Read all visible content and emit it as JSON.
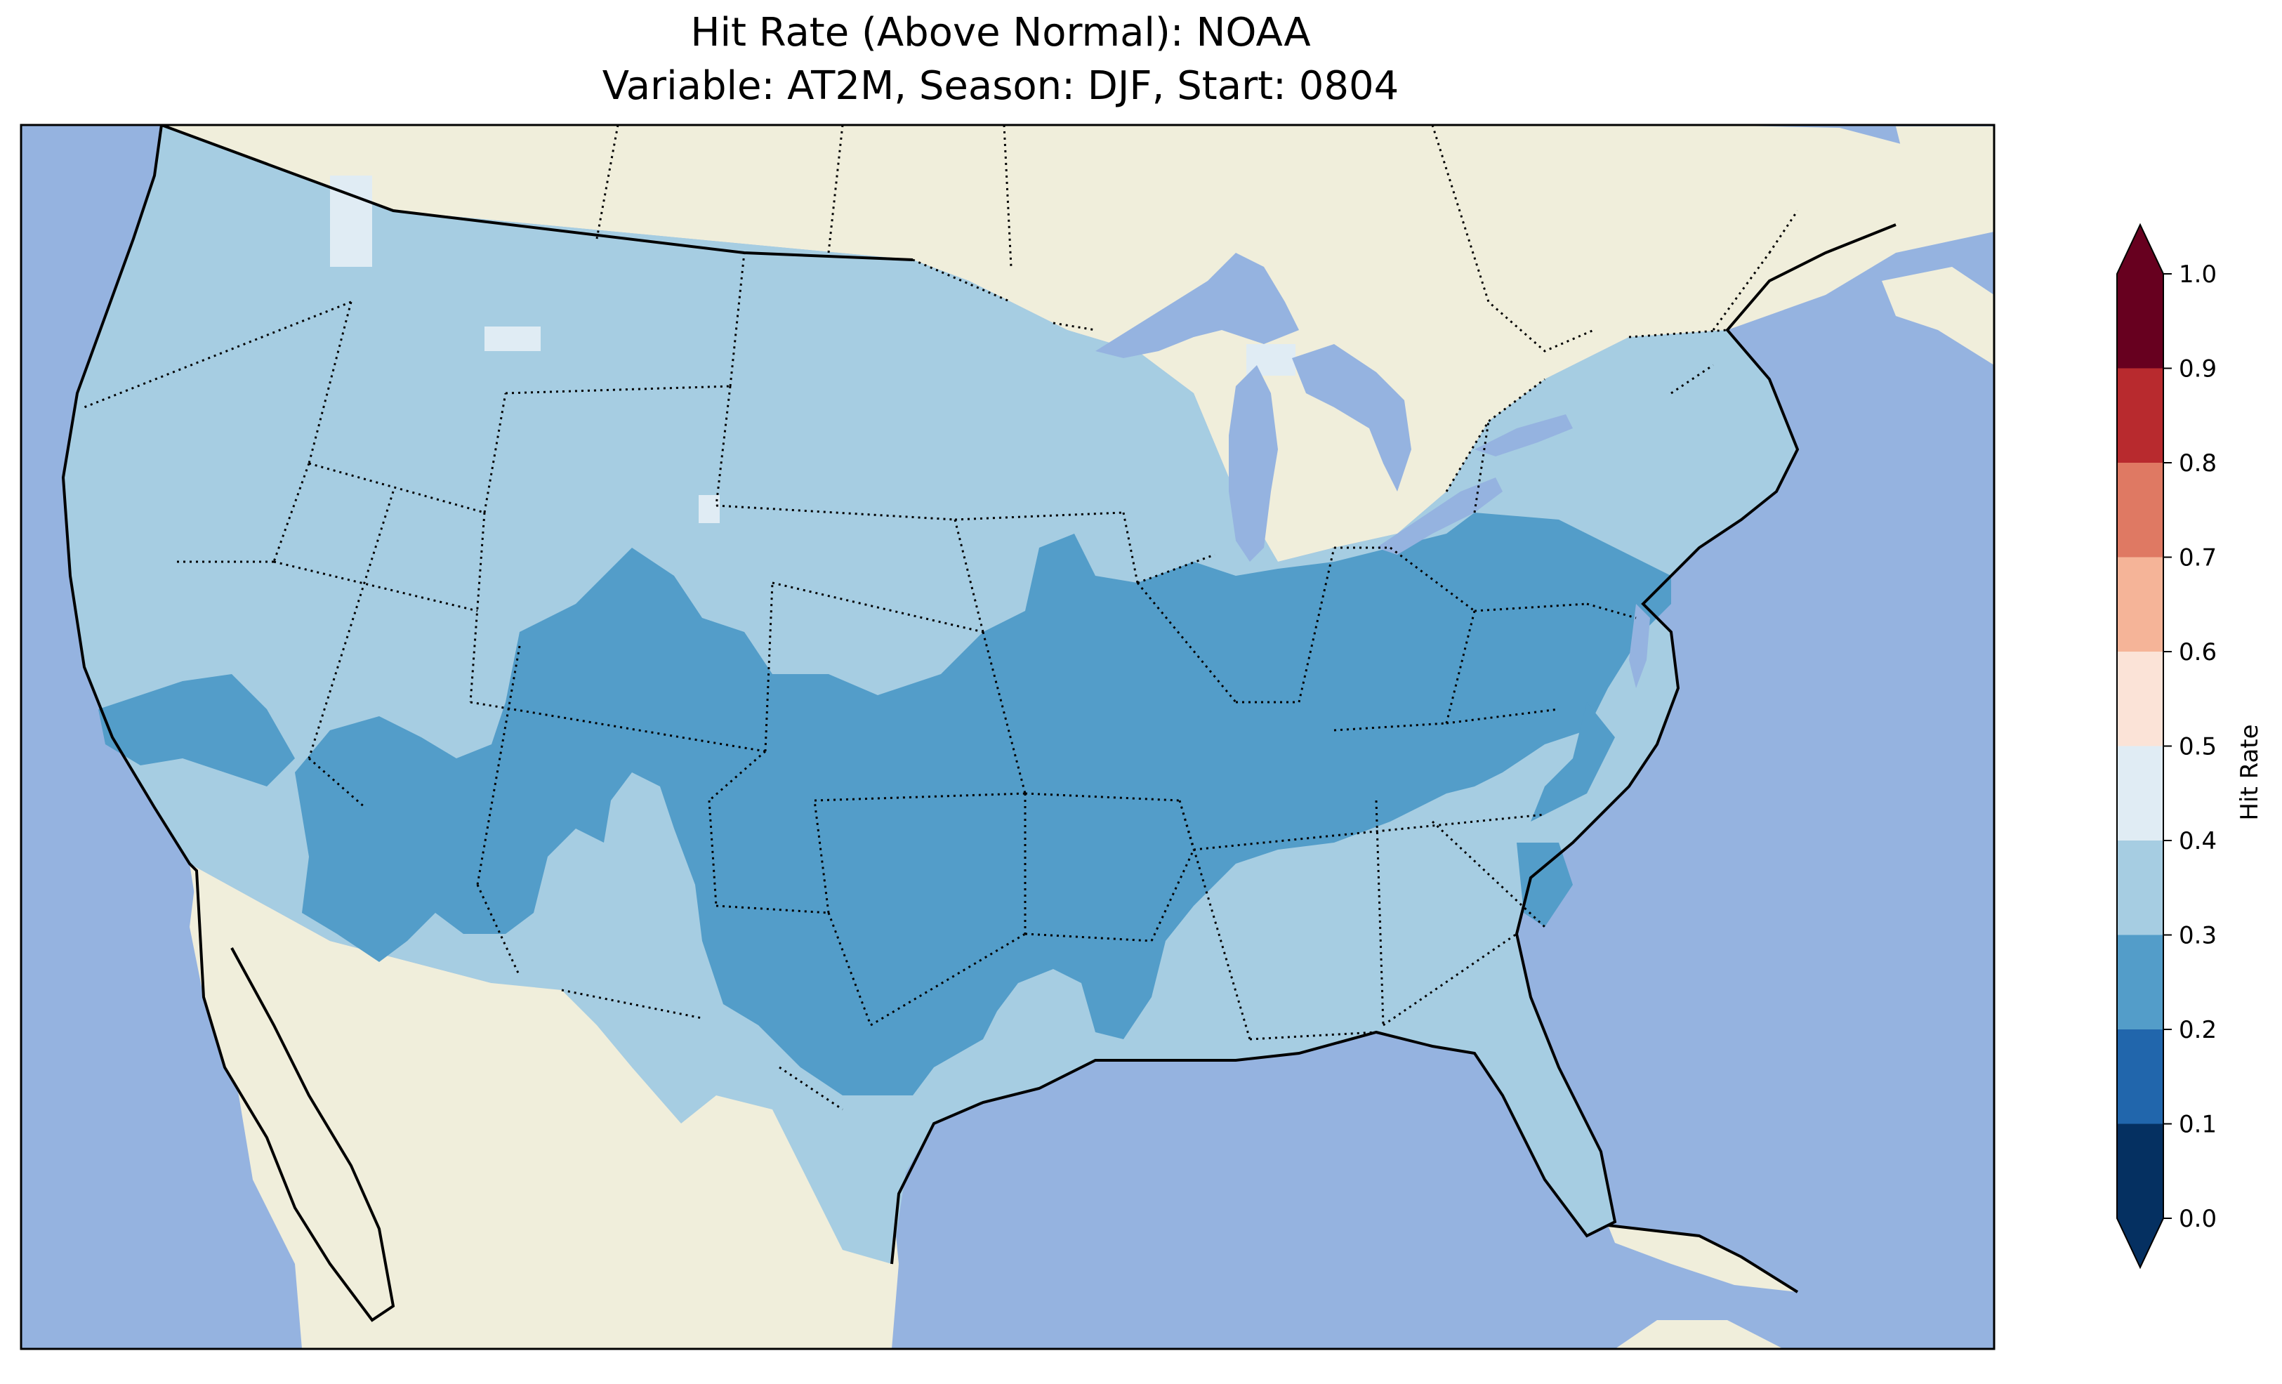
{
  "figure": {
    "title_line1": "Hit Rate (Above Normal): NOAA",
    "title_line2": "Variable: AT2M, Season: DJF, Start: 0804"
  },
  "colors": {
    "ocean": "#95b3e0",
    "land": "#f0eedb",
    "hit_0_1": "#053061",
    "hit_1_2": "#2166ac",
    "hit_2_3": "#539dc9",
    "hit_3_4": "#a6cde2",
    "hit_4_5": "#e0ecf4",
    "hit_5_6": "#fbe3d7",
    "hit_6_7": "#f5b498",
    "hit_7_8": "#df7963",
    "hit_8_9": "#b82a2e",
    "hit_9_10": "#67001f"
  },
  "colorbar": {
    "label": "Hit Rate",
    "ticks": [
      "0.0",
      "0.1",
      "0.2",
      "0.3",
      "0.4",
      "0.5",
      "0.6",
      "0.7",
      "0.8",
      "0.9",
      "1.0"
    ],
    "colors": [
      "#053061",
      "#2166ac",
      "#539dc9",
      "#a6cde2",
      "#e0ecf4",
      "#fbe3d7",
      "#f5b498",
      "#df7963",
      "#b82a2e",
      "#67001f"
    ],
    "extend": "both"
  }
}
